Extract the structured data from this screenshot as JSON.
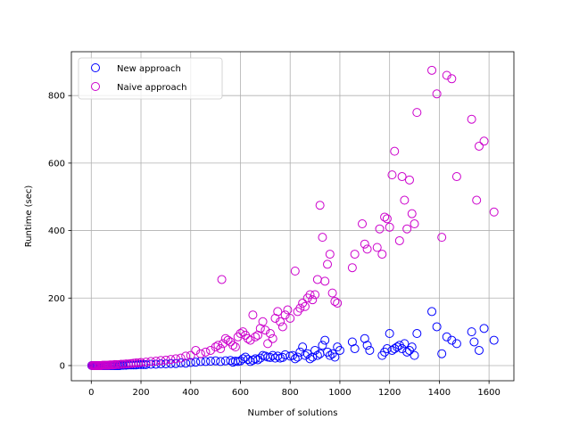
{
  "chart_data": {
    "type": "scatter",
    "xlabel": "Number of solutions",
    "ylabel": "Runtime (sec)",
    "xlim": [
      -80,
      1700
    ],
    "ylim": [
      -45,
      930
    ],
    "xticks": [
      0,
      200,
      400,
      600,
      800,
      1000,
      1200,
      1400,
      1600
    ],
    "yticks": [
      0,
      200,
      400,
      600,
      800
    ],
    "grid": true,
    "legend_position": "top-left",
    "series": [
      {
        "name": "New approach",
        "color": "#0000ff",
        "marker": "hollow-circle",
        "points": [
          [
            2,
            0
          ],
          [
            6,
            0
          ],
          [
            10,
            0
          ],
          [
            14,
            0
          ],
          [
            18,
            0
          ],
          [
            22,
            0
          ],
          [
            26,
            0
          ],
          [
            30,
            0
          ],
          [
            35,
            0
          ],
          [
            40,
            0
          ],
          [
            45,
            0
          ],
          [
            50,
            0
          ],
          [
            55,
            0
          ],
          [
            60,
            0
          ],
          [
            65,
            0
          ],
          [
            70,
            0
          ],
          [
            75,
            0
          ],
          [
            80,
            0
          ],
          [
            85,
            0
          ],
          [
            90,
            0
          ],
          [
            95,
            0
          ],
          [
            100,
            0
          ],
          [
            105,
            0
          ],
          [
            110,
            0
          ],
          [
            115,
            0
          ],
          [
            120,
            1
          ],
          [
            125,
            1
          ],
          [
            130,
            1
          ],
          [
            140,
            1
          ],
          [
            150,
            2
          ],
          [
            160,
            2
          ],
          [
            170,
            2
          ],
          [
            180,
            2
          ],
          [
            190,
            3
          ],
          [
            200,
            3
          ],
          [
            210,
            3
          ],
          [
            220,
            3
          ],
          [
            240,
            4
          ],
          [
            260,
            4
          ],
          [
            280,
            5
          ],
          [
            300,
            5
          ],
          [
            320,
            6
          ],
          [
            340,
            6
          ],
          [
            360,
            8
          ],
          [
            380,
            7
          ],
          [
            400,
            9
          ],
          [
            420,
            10
          ],
          [
            440,
            12
          ],
          [
            460,
            12
          ],
          [
            480,
            13
          ],
          [
            500,
            14
          ],
          [
            520,
            12
          ],
          [
            540,
            14
          ],
          [
            560,
            15
          ],
          [
            570,
            10
          ],
          [
            580,
            13
          ],
          [
            590,
            12
          ],
          [
            600,
            14
          ],
          [
            610,
            20
          ],
          [
            620,
            25
          ],
          [
            630,
            18
          ],
          [
            640,
            12
          ],
          [
            650,
            16
          ],
          [
            660,
            20
          ],
          [
            670,
            17
          ],
          [
            680,
            22
          ],
          [
            690,
            30
          ],
          [
            700,
            28
          ],
          [
            710,
            25
          ],
          [
            720,
            24
          ],
          [
            730,
            30
          ],
          [
            740,
            22
          ],
          [
            750,
            28
          ],
          [
            760,
            22
          ],
          [
            770,
            24
          ],
          [
            780,
            32
          ],
          [
            800,
            28
          ],
          [
            810,
            30
          ],
          [
            820,
            20
          ],
          [
            830,
            25
          ],
          [
            840,
            40
          ],
          [
            850,
            55
          ],
          [
            860,
            30
          ],
          [
            870,
            35
          ],
          [
            880,
            20
          ],
          [
            890,
            25
          ],
          [
            900,
            45
          ],
          [
            910,
            30
          ],
          [
            920,
            35
          ],
          [
            930,
            60
          ],
          [
            940,
            75
          ],
          [
            950,
            40
          ],
          [
            960,
            30
          ],
          [
            970,
            35
          ],
          [
            980,
            25
          ],
          [
            990,
            55
          ],
          [
            1000,
            45
          ],
          [
            1050,
            70
          ],
          [
            1060,
            50
          ],
          [
            1100,
            80
          ],
          [
            1110,
            60
          ],
          [
            1120,
            45
          ],
          [
            1170,
            30
          ],
          [
            1180,
            40
          ],
          [
            1190,
            50
          ],
          [
            1200,
            95
          ],
          [
            1210,
            45
          ],
          [
            1220,
            50
          ],
          [
            1230,
            55
          ],
          [
            1240,
            60
          ],
          [
            1250,
            50
          ],
          [
            1260,
            65
          ],
          [
            1270,
            40
          ],
          [
            1280,
            45
          ],
          [
            1290,
            55
          ],
          [
            1300,
            30
          ],
          [
            1310,
            95
          ],
          [
            1370,
            160
          ],
          [
            1390,
            115
          ],
          [
            1410,
            35
          ],
          [
            1430,
            85
          ],
          [
            1450,
            75
          ],
          [
            1470,
            65
          ],
          [
            1530,
            100
          ],
          [
            1540,
            70
          ],
          [
            1560,
            45
          ],
          [
            1580,
            110
          ],
          [
            1620,
            75
          ]
        ]
      },
      {
        "name": "Naive approach",
        "color": "#cc00cc",
        "marker": "hollow-circle",
        "points": [
          [
            3,
            0
          ],
          [
            8,
            0
          ],
          [
            12,
            0
          ],
          [
            16,
            0
          ],
          [
            20,
            0
          ],
          [
            25,
            0
          ],
          [
            30,
            0
          ],
          [
            35,
            0
          ],
          [
            40,
            0
          ],
          [
            45,
            1
          ],
          [
            50,
            1
          ],
          [
            55,
            1
          ],
          [
            60,
            1
          ],
          [
            65,
            1
          ],
          [
            70,
            1
          ],
          [
            75,
            2
          ],
          [
            80,
            2
          ],
          [
            85,
            2
          ],
          [
            90,
            2
          ],
          [
            95,
            3
          ],
          [
            100,
            3
          ],
          [
            110,
            3
          ],
          [
            120,
            4
          ],
          [
            130,
            4
          ],
          [
            140,
            5
          ],
          [
            150,
            5
          ],
          [
            160,
            6
          ],
          [
            170,
            7
          ],
          [
            180,
            8
          ],
          [
            190,
            8
          ],
          [
            200,
            9
          ],
          [
            220,
            10
          ],
          [
            240,
            12
          ],
          [
            260,
            13
          ],
          [
            280,
            15
          ],
          [
            300,
            16
          ],
          [
            320,
            18
          ],
          [
            340,
            20
          ],
          [
            360,
            22
          ],
          [
            380,
            28
          ],
          [
            400,
            30
          ],
          [
            420,
            45
          ],
          [
            440,
            35
          ],
          [
            460,
            40
          ],
          [
            480,
            45
          ],
          [
            500,
            55
          ],
          [
            510,
            60
          ],
          [
            520,
            50
          ],
          [
            525,
            255
          ],
          [
            530,
            65
          ],
          [
            540,
            80
          ],
          [
            550,
            75
          ],
          [
            560,
            70
          ],
          [
            570,
            60
          ],
          [
            580,
            55
          ],
          [
            590,
            85
          ],
          [
            600,
            95
          ],
          [
            610,
            100
          ],
          [
            620,
            90
          ],
          [
            630,
            80
          ],
          [
            640,
            75
          ],
          [
            650,
            150
          ],
          [
            660,
            85
          ],
          [
            670,
            90
          ],
          [
            680,
            110
          ],
          [
            690,
            130
          ],
          [
            700,
            105
          ],
          [
            710,
            65
          ],
          [
            720,
            95
          ],
          [
            730,
            80
          ],
          [
            740,
            140
          ],
          [
            750,
            160
          ],
          [
            760,
            130
          ],
          [
            770,
            115
          ],
          [
            780,
            150
          ],
          [
            790,
            165
          ],
          [
            800,
            140
          ],
          [
            820,
            280
          ],
          [
            830,
            160
          ],
          [
            840,
            170
          ],
          [
            850,
            185
          ],
          [
            860,
            175
          ],
          [
            870,
            200
          ],
          [
            880,
            210
          ],
          [
            890,
            195
          ],
          [
            900,
            210
          ],
          [
            910,
            255
          ],
          [
            920,
            475
          ],
          [
            930,
            380
          ],
          [
            940,
            250
          ],
          [
            950,
            300
          ],
          [
            960,
            330
          ],
          [
            970,
            215
          ],
          [
            980,
            190
          ],
          [
            990,
            185
          ],
          [
            1050,
            290
          ],
          [
            1060,
            330
          ],
          [
            1090,
            420
          ],
          [
            1100,
            360
          ],
          [
            1110,
            345
          ],
          [
            1150,
            350
          ],
          [
            1160,
            405
          ],
          [
            1170,
            330
          ],
          [
            1180,
            440
          ],
          [
            1190,
            435
          ],
          [
            1200,
            410
          ],
          [
            1210,
            565
          ],
          [
            1220,
            635
          ],
          [
            1240,
            370
          ],
          [
            1250,
            560
          ],
          [
            1260,
            490
          ],
          [
            1270,
            405
          ],
          [
            1280,
            550
          ],
          [
            1290,
            450
          ],
          [
            1300,
            420
          ],
          [
            1310,
            750
          ],
          [
            1370,
            875
          ],
          [
            1390,
            805
          ],
          [
            1410,
            380
          ],
          [
            1430,
            860
          ],
          [
            1450,
            850
          ],
          [
            1470,
            560
          ],
          [
            1530,
            730
          ],
          [
            1550,
            490
          ],
          [
            1560,
            650
          ],
          [
            1580,
            665
          ],
          [
            1620,
            455
          ]
        ]
      }
    ]
  }
}
